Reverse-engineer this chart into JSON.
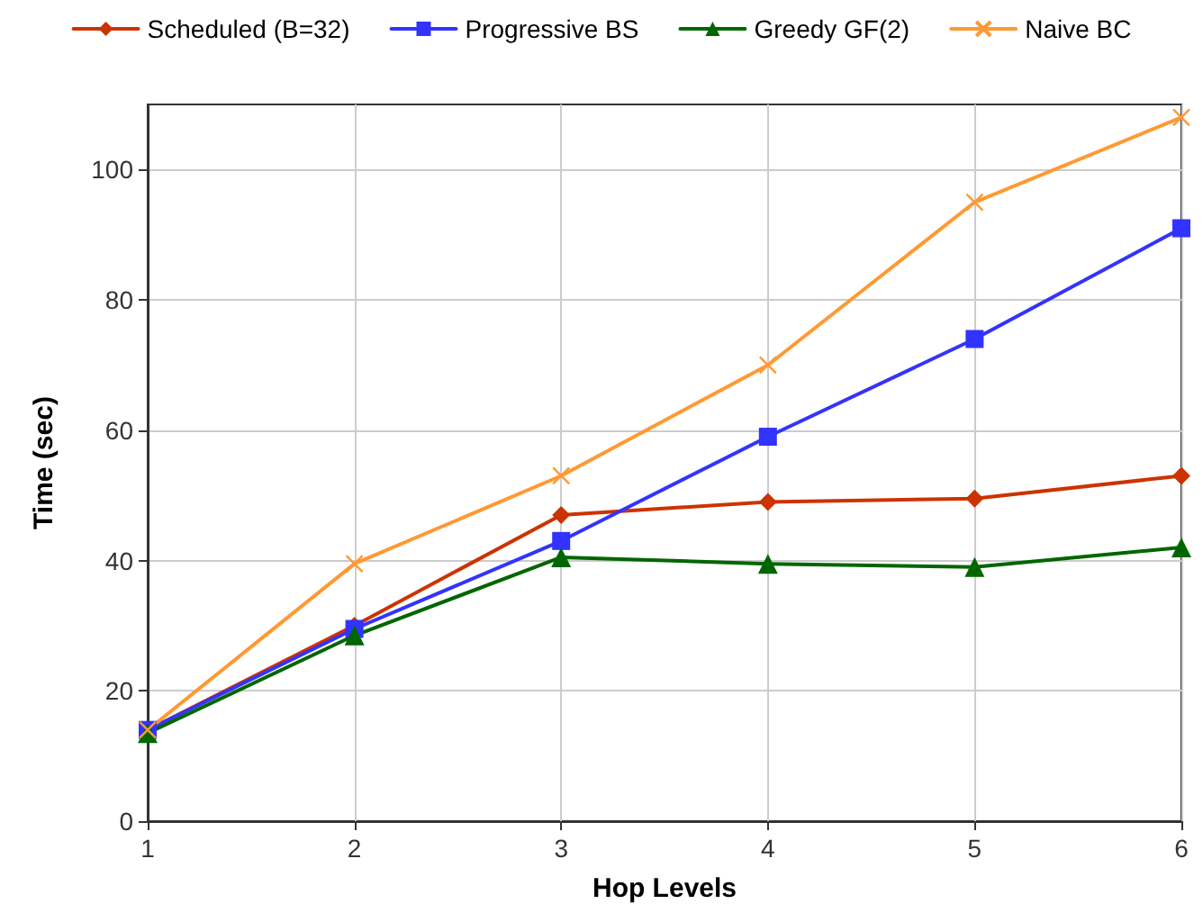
{
  "chart_data": {
    "type": "line",
    "xlabel": "Hop Levels",
    "ylabel": "Time (sec)",
    "x": [
      1,
      2,
      3,
      4,
      5,
      6
    ],
    "xlim": [
      1,
      6
    ],
    "xticks": [
      1,
      2,
      3,
      4,
      5,
      6
    ],
    "ylim": [
      0,
      110
    ],
    "yticks": [
      0,
      20,
      40,
      60,
      80,
      100
    ],
    "grid": true,
    "legend": "top",
    "line_style": "solid",
    "series": [
      {
        "name": "Scheduled (B=32)",
        "color": "#cc3300",
        "marker": "diamond",
        "values": [
          14,
          30,
          47,
          49,
          49.5,
          53
        ]
      },
      {
        "name": "Progressive BS",
        "color": "#3333ff",
        "marker": "square",
        "values": [
          14,
          29.5,
          43,
          59,
          74,
          91
        ]
      },
      {
        "name": "Greedy GF(2)",
        "color": "#006600",
        "marker": "triangle",
        "values": [
          13.5,
          28.5,
          40.5,
          39.5,
          39,
          42
        ]
      },
      {
        "name": "Naive BC",
        "color": "#ff9933",
        "marker": "cross",
        "values": [
          14,
          39.5,
          53,
          70,
          95,
          108
        ]
      }
    ]
  }
}
